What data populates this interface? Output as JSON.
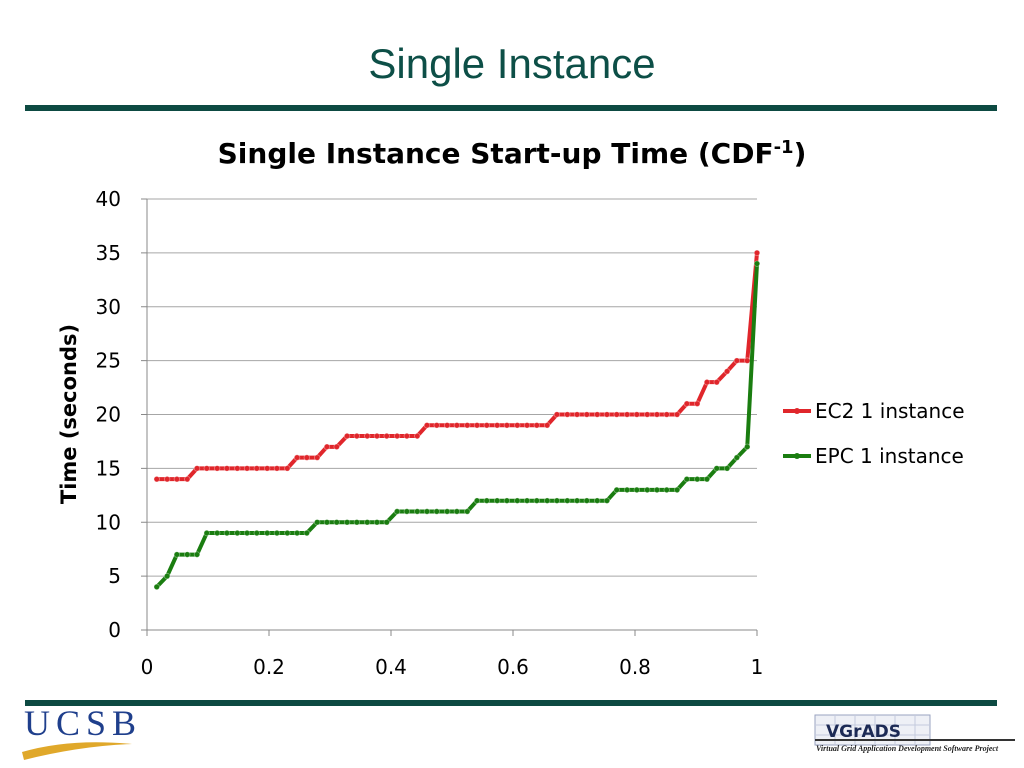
{
  "slide": {
    "title": "Single Instance",
    "logo_left": "UCSB",
    "logo_right": "VGrADS",
    "logo_right_caption": "Virtual Grid Application Development Software Project"
  },
  "chart_data": {
    "type": "line",
    "title": [
      "Single Instance Start-up Time (CDF",
      "-1",
      ")"
    ],
    "y_label": "Time (seconds)",
    "x": [
      0.016,
      0.033,
      0.049,
      0.066,
      0.082,
      0.098,
      0.115,
      0.131,
      0.148,
      0.164,
      0.18,
      0.197,
      0.213,
      0.23,
      0.246,
      0.262,
      0.279,
      0.295,
      0.311,
      0.328,
      0.344,
      0.361,
      0.377,
      0.393,
      0.41,
      0.426,
      0.443,
      0.459,
      0.475,
      0.492,
      0.508,
      0.525,
      0.541,
      0.557,
      0.574,
      0.59,
      0.607,
      0.623,
      0.639,
      0.656,
      0.672,
      0.689,
      0.705,
      0.721,
      0.738,
      0.754,
      0.77,
      0.787,
      0.803,
      0.82,
      0.836,
      0.852,
      0.869,
      0.885,
      0.902,
      0.918,
      0.934,
      0.951,
      0.967,
      0.984,
      1
    ],
    "series": [
      {
        "name": "EC2 1 instance",
        "color": "#e0262b",
        "values": [
          14,
          14,
          14,
          14,
          15,
          15,
          15,
          15,
          15,
          15,
          15,
          15,
          15,
          15,
          16,
          16,
          16,
          17,
          17,
          18,
          18,
          18,
          18,
          18,
          18,
          18,
          18,
          19,
          19,
          19,
          19,
          19,
          19,
          19,
          19,
          19,
          19,
          19,
          19,
          19,
          20,
          20,
          20,
          20,
          20,
          20,
          20,
          20,
          20,
          20,
          20,
          20,
          20,
          21,
          21,
          23,
          23,
          24,
          25,
          25,
          35
        ]
      },
      {
        "name": "EPC 1 instance",
        "color": "#1a7d10",
        "values": [
          4,
          5,
          7,
          7,
          7,
          9,
          9,
          9,
          9,
          9,
          9,
          9,
          9,
          9,
          9,
          9,
          10,
          10,
          10,
          10,
          10,
          10,
          10,
          10,
          11,
          11,
          11,
          11,
          11,
          11,
          11,
          11,
          12,
          12,
          12,
          12,
          12,
          12,
          12,
          12,
          12,
          12,
          12,
          12,
          12,
          12,
          13,
          13,
          13,
          13,
          13,
          13,
          13,
          14,
          14,
          14,
          15,
          15,
          16,
          17,
          34
        ]
      }
    ],
    "xlim": [
      0,
      1
    ],
    "xticks": [
      0,
      0.2,
      0.4,
      0.6,
      0.8,
      1
    ],
    "ylim": [
      0,
      40
    ],
    "yticks": [
      0,
      5,
      10,
      15,
      20,
      25,
      30,
      35,
      40
    ],
    "grid": true,
    "legend": "right"
  }
}
